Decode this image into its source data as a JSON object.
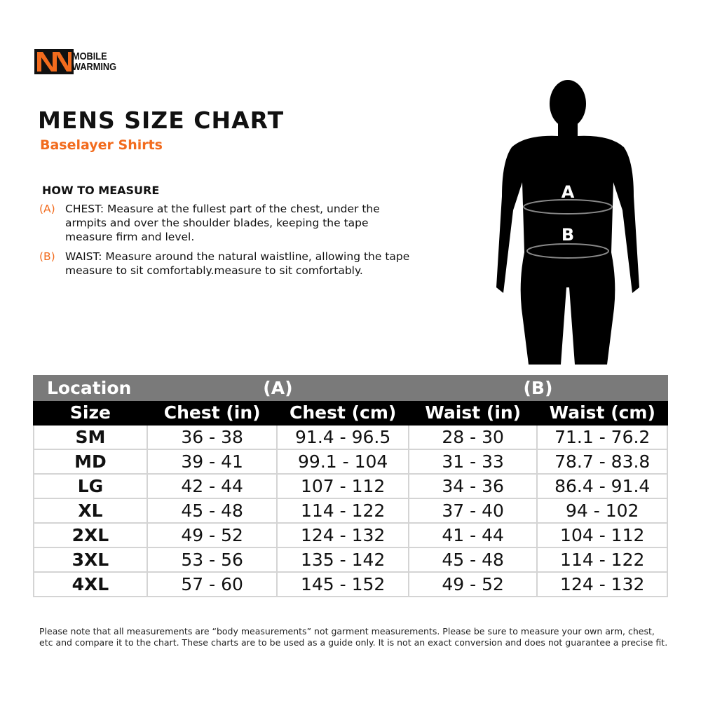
{
  "brand": {
    "line1": "MOBILE",
    "line2": "WARMING",
    "trademark": "™",
    "accent": "#f26b1d"
  },
  "title": "MENS SIZE CHART",
  "subtitle": "Baselayer Shirts",
  "how_to": {
    "heading": "HOW TO MEASURE",
    "items": [
      {
        "key": "(A)",
        "text": "CHEST: Measure at the fullest part of the chest, under the armpits and over the shoulder blades, keeping the tape measure firm and level."
      },
      {
        "key": "(B)",
        "text": "WAIST: Measure around the natural waistline, allowing the tape measure to sit comfortably.measure to sit comfortably."
      }
    ]
  },
  "figure": {
    "label_a": "A",
    "label_b": "B"
  },
  "table": {
    "location_label": "Location",
    "group_a": "(A)",
    "group_b": "(B)",
    "headers": [
      "Size",
      "Chest (in)",
      "Chest (cm)",
      "Waist (in)",
      "Waist (cm)"
    ],
    "rows": [
      [
        "SM",
        "36 - 38",
        "91.4 - 96.5",
        "28 - 30",
        "71.1 - 76.2"
      ],
      [
        "MD",
        "39 - 41",
        "99.1 - 104",
        "31 - 33",
        "78.7 - 83.8"
      ],
      [
        "LG",
        "42 - 44",
        "107 - 112",
        "34 - 36",
        "86.4 - 91.4"
      ],
      [
        "XL",
        "45 - 48",
        "114 - 122",
        "37 - 40",
        "94 - 102"
      ],
      [
        "2XL",
        "49 - 52",
        "124 - 132",
        "41 - 44",
        "104 - 112"
      ],
      [
        "3XL",
        "53 - 56",
        "135 - 142",
        "45 - 48",
        "114 - 122"
      ],
      [
        "4XL",
        "57 - 60",
        "145 - 152",
        "49 - 52",
        "124 - 132"
      ]
    ]
  },
  "note": "Please note that all measurements are “body measurements” not garment measurements. Please be sure to measure your own arm, chest, etc and compare it to the chart. These charts are to be used as a guide only. It is not an exact conversion and does not guarantee a precise fit."
}
